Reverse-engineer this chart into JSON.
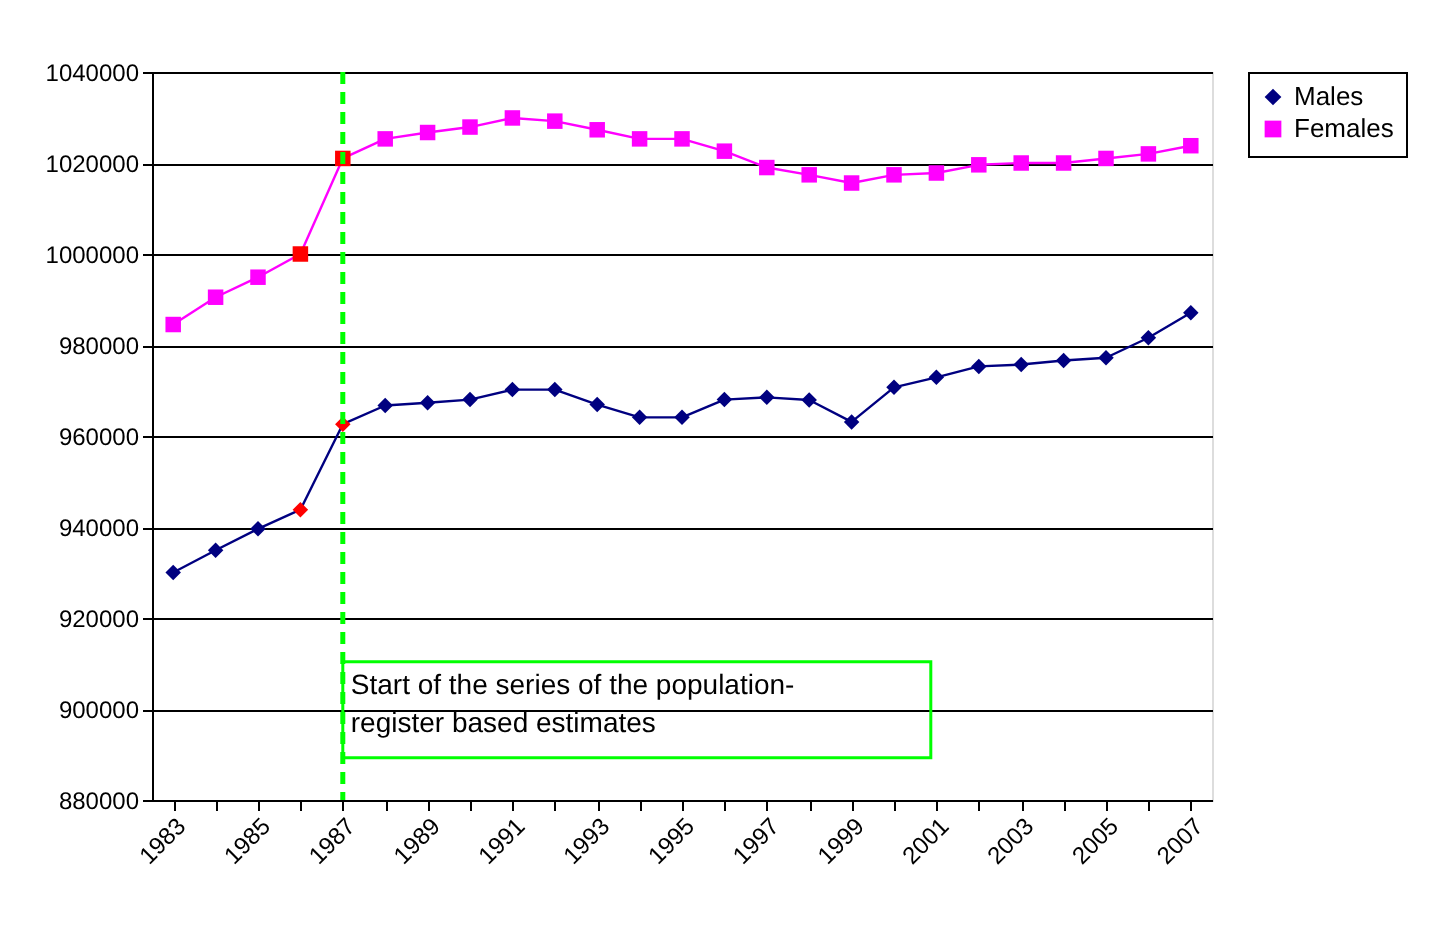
{
  "chart_data": {
    "type": "line",
    "categories": [
      "1983",
      null,
      "1985",
      null,
      "1987",
      null,
      "1989",
      null,
      "1991",
      null,
      "1993",
      null,
      "1995",
      null,
      "1997",
      null,
      "1999",
      null,
      "2001",
      null,
      "2003",
      null,
      "2005",
      null,
      "2007"
    ],
    "series": [
      {
        "name": "Males",
        "color": "#000080",
        "marker": "diamond",
        "values": [
          930000,
          934900,
          939600,
          943800,
          962600,
          966700,
          967300,
          968000,
          970200,
          970200,
          966900,
          964100,
          964100,
          968000,
          968500,
          967900,
          963100,
          970700,
          972900,
          975300,
          975700,
          976600,
          977200,
          981600,
          987100
        ],
        "colors": [
          "#000080",
          "#000080",
          "#000080",
          "#ff0000",
          "#ff0000",
          "#000080",
          "#000080",
          "#000080",
          "#000080",
          "#000080",
          "#000080",
          "#000080",
          "#000080",
          "#000080",
          "#000080",
          "#000080",
          "#000080",
          "#000080",
          "#000080",
          "#000080",
          "#000080",
          "#000080",
          "#000080",
          "#000080",
          "#000080"
        ]
      },
      {
        "name": "Females",
        "color": "#ff00ff",
        "marker": "square",
        "values": [
          984500,
          990500,
          994900,
          1000000,
          1021000,
          1025300,
          1026700,
          1027900,
          1029900,
          1029200,
          1027300,
          1025300,
          1025300,
          1022600,
          1019000,
          1017400,
          1015600,
          1017400,
          1017800,
          1019600,
          1020000,
          1020000,
          1021000,
          1022000,
          1023800
        ],
        "colors": [
          "#ff00ff",
          "#ff00ff",
          "#ff00ff",
          "#ff0000",
          "#ff0000",
          "#ff00ff",
          "#ff00ff",
          "#ff00ff",
          "#ff00ff",
          "#ff00ff",
          "#ff00ff",
          "#ff00ff",
          "#ff00ff",
          "#ff00ff",
          "#ff00ff",
          "#ff00ff",
          "#ff00ff",
          "#ff00ff",
          "#ff00ff",
          "#ff00ff",
          "#ff00ff",
          "#ff00ff",
          "#ff00ff",
          "#ff00ff",
          "#ff00ff"
        ]
      }
    ],
    "ylim": [
      880000,
      1040000
    ],
    "yticks": [
      880000,
      900000,
      920000,
      940000,
      960000,
      980000,
      1000000,
      1020000,
      1040000
    ],
    "grid": "y",
    "legend": "right",
    "line_style": "solid",
    "ref_lines": [
      {
        "axis": "x",
        "value": "1987",
        "label": "Start of the series of the population-register based estimates",
        "color": "#00ff00",
        "line_style": "dashed"
      }
    ]
  }
}
